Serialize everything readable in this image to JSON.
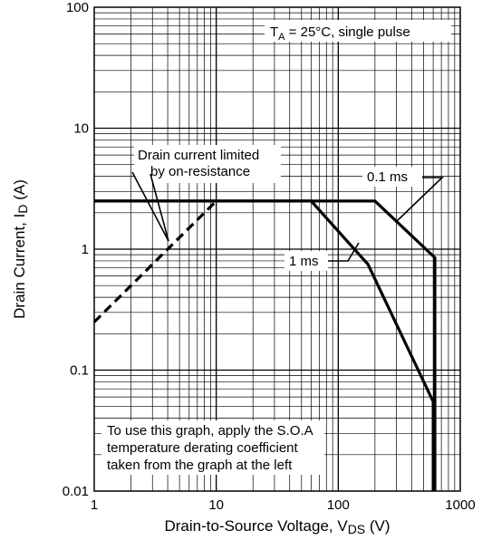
{
  "chart_data": {
    "type": "line",
    "title": "",
    "xscale": "log",
    "yscale": "log",
    "xlim": [
      1,
      1000
    ],
    "ylim": [
      0.01,
      100
    ],
    "grid": true,
    "xlabel": "Drain-to-Source Voltage, V",
    "xlabel_sub": "DS",
    "xlabel_suffix": " (V)",
    "ylabel": "Drain Current, I",
    "ylabel_sub": "D",
    "ylabel_suffix": " (A)",
    "x_ticks": [
      "1",
      "10",
      "100",
      "1000"
    ],
    "y_ticks": [
      "0.01",
      "0.1",
      "1",
      "10",
      "100"
    ],
    "x_tick_values": [
      1,
      10,
      100,
      1000
    ],
    "y_tick_values": [
      0.01,
      0.1,
      1,
      10,
      100
    ],
    "condition_box": {
      "prefix": "T",
      "sub": "A",
      "suffix": " = 25°C, single pulse"
    },
    "series": [
      {
        "name": "0.1 ms",
        "style": "solid",
        "points": [
          [
            1,
            2.5
          ],
          [
            200,
            2.5
          ],
          [
            620,
            0.85
          ],
          [
            620,
            0.01
          ]
        ]
      },
      {
        "name": "1 ms",
        "style": "solid",
        "points": [
          [
            1,
            2.5
          ],
          [
            60,
            2.5
          ],
          [
            175,
            0.75
          ],
          [
            600,
            0.055
          ],
          [
            600,
            0.01
          ]
        ]
      },
      {
        "name": "Drain current limited by on-resistance",
        "style": "dashed",
        "points": [
          [
            1,
            0.25
          ],
          [
            10,
            2.5
          ]
        ]
      }
    ],
    "annotations": [
      {
        "lines": [
          "Drain current limited",
          "by on-resistance"
        ]
      },
      {
        "lines": [
          "0.1 ms"
        ]
      },
      {
        "lines": [
          "1 ms"
        ]
      },
      {
        "lines": [
          "To use this graph, apply the S.O.A",
          "temperature derating coefficient",
          "taken from the graph at the left"
        ]
      }
    ]
  }
}
